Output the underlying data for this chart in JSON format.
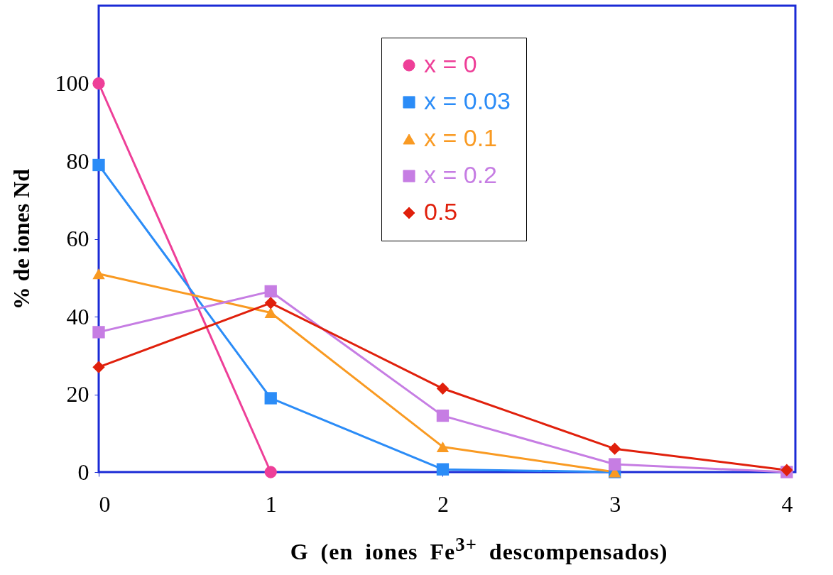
{
  "chart_data": {
    "type": "line",
    "xlabel": "G (en iones Fe$^{3+}$ descompensados)",
    "ylabel": "% de iones Nd",
    "x": [
      0,
      1,
      2,
      3,
      4
    ],
    "xlim": [
      0,
      4.05
    ],
    "xticks": [
      0,
      1,
      2,
      3,
      4
    ],
    "ylim": [
      0,
      120
    ],
    "yticks": [
      0,
      20,
      40,
      60,
      80,
      100
    ],
    "grid": false,
    "legend": "top right",
    "series": [
      {
        "name": "x = 0",
        "color": "#ee3f98",
        "marker": "circle",
        "values": [
          100,
          0,
          null,
          null,
          null
        ]
      },
      {
        "name": "x = 0.03",
        "color": "#2b8cf7",
        "marker": "square",
        "values": [
          79,
          19,
          0.7,
          0,
          null
        ]
      },
      {
        "name": "x = 0.1",
        "color": "#f99a22",
        "marker": "triangle",
        "values": [
          51,
          41,
          6.5,
          0,
          null
        ]
      },
      {
        "name": "x = 0.2",
        "color": "#c67de3",
        "marker": "square",
        "values": [
          36,
          46.5,
          14.5,
          2,
          0
        ]
      },
      {
        "name": "0.5",
        "color": "#e0200c",
        "marker": "diamond",
        "values": [
          27,
          43.5,
          21.5,
          6,
          0.5
        ]
      }
    ]
  }
}
